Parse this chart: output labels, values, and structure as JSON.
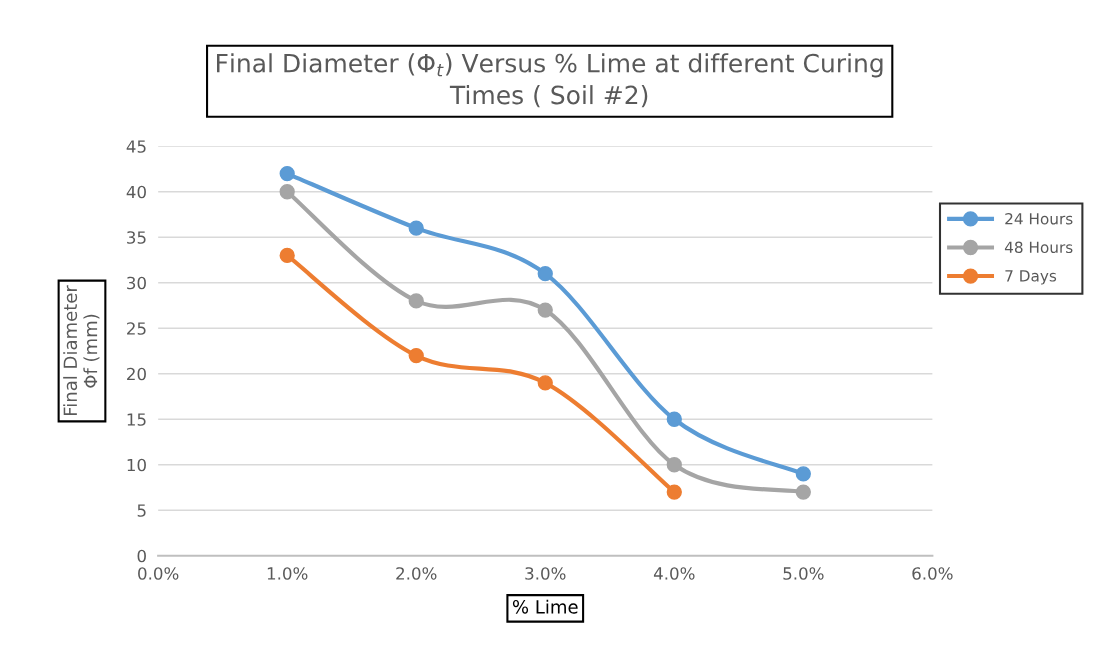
{
  "chart_data": {
    "type": "line",
    "title": "Final Diameter (Φ$_{t}$) Versus % Lime at different Curing\nTimes ( Soil #2)",
    "xlabel": "% Lime",
    "ylabel": "Final Diameter\nΦf (mm)",
    "x": [
      0.01,
      0.02,
      0.03,
      0.04,
      0.05
    ],
    "series": [
      {
        "name": "24 Hours",
        "color": "#5b9bd5",
        "values": [
          42,
          36,
          31,
          15,
          9
        ]
      },
      {
        "name": "48 Hours",
        "color": "#a5a5a5",
        "values": [
          40,
          28,
          27,
          10,
          7
        ]
      },
      {
        "name": "7 Days",
        "color": "#ed7d31",
        "values": [
          33,
          22,
          19,
          7,
          null
        ]
      }
    ],
    "xlim": [
      0,
      0.06
    ],
    "xticks": [
      {
        "value": 0,
        "label": "0.0%"
      },
      {
        "value": 0.01,
        "label": "1.0%"
      },
      {
        "value": 0.02,
        "label": "2.0%"
      },
      {
        "value": 0.03,
        "label": "3.0%"
      },
      {
        "value": 0.04,
        "label": "4.0%"
      },
      {
        "value": 0.05,
        "label": "5.0%"
      },
      {
        "value": 0.06,
        "label": "6.0%"
      }
    ],
    "ylim": [
      0,
      45
    ],
    "yticks": [
      0,
      5,
      10,
      15,
      20,
      25,
      30,
      35,
      40,
      45
    ],
    "grid": "y",
    "legend": "right",
    "marker": "circle",
    "line_style": "solid"
  }
}
